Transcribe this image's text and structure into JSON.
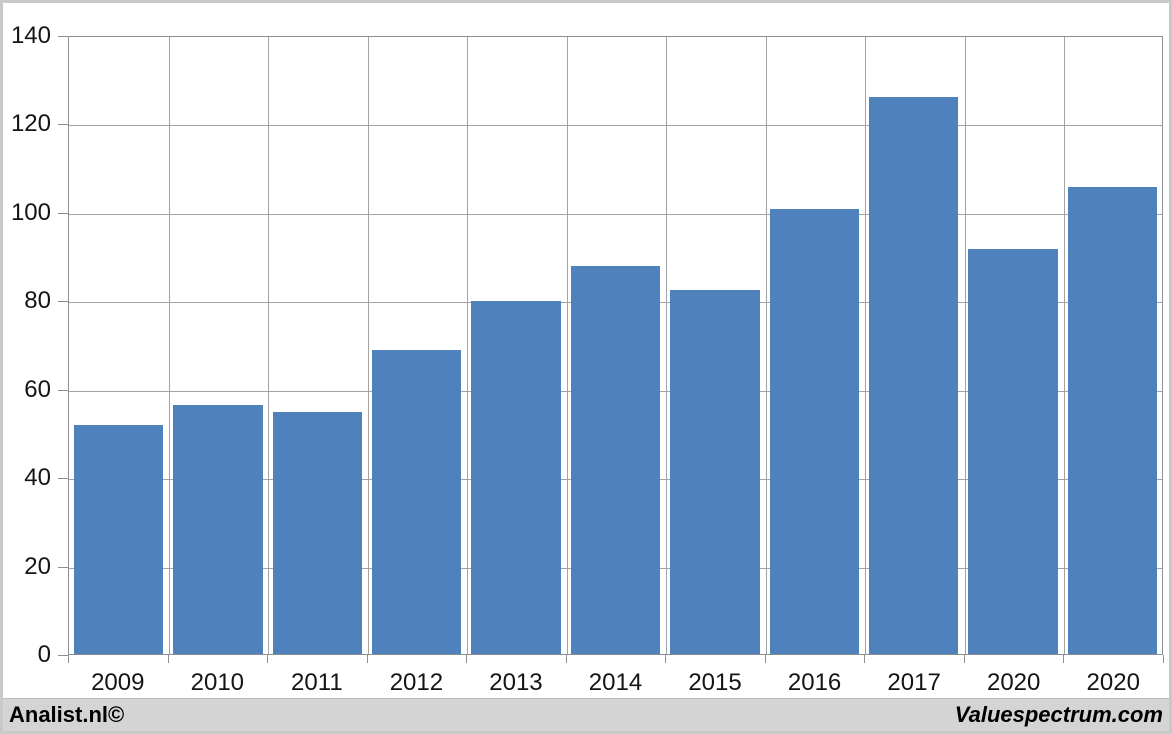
{
  "footer": {
    "left": "Analist.nl©",
    "right": "Valuespectrum.com"
  },
  "colors": {
    "bar_fill": "#4F81BD",
    "gridline": "#a3a3a3",
    "axis": "#8e8e8e",
    "plot_background": "#ffffff",
    "footer_background": "#d4d4d4",
    "text": "#151515"
  },
  "chart_data": {
    "type": "bar",
    "title": "",
    "xlabel": "",
    "ylabel": "",
    "categories": [
      "2009",
      "2010",
      "2011",
      "2012",
      "2013",
      "2014",
      "2015",
      "2016",
      "2017",
      "2020",
      "2020"
    ],
    "values": [
      52,
      56.5,
      55,
      69,
      80,
      88,
      82.5,
      101,
      126.5,
      92,
      106
    ],
    "ylim": [
      0,
      140
    ],
    "ytick_step": 20,
    "yticks": [
      0,
      20,
      40,
      60,
      80,
      100,
      120,
      140
    ],
    "grid": "both",
    "legend": "none",
    "bar_gap_fraction": 0.1
  }
}
